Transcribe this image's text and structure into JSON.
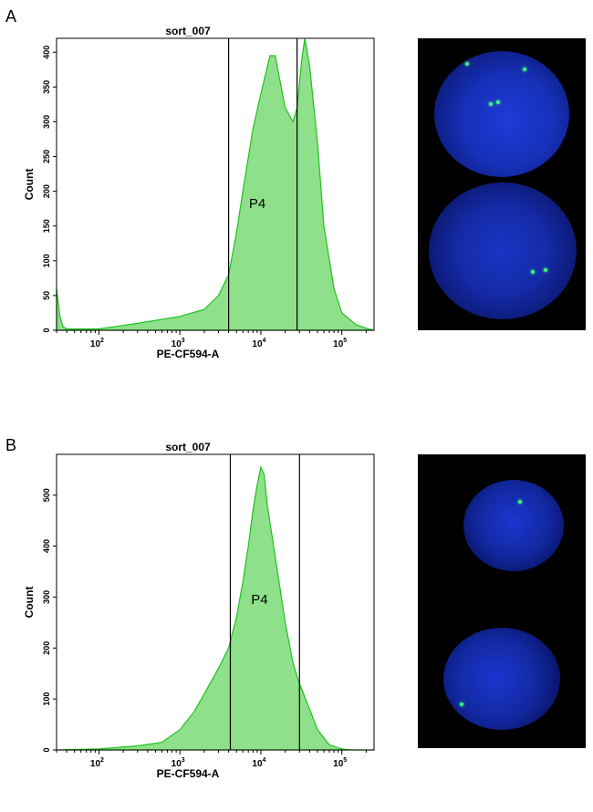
{
  "panels": [
    {
      "letter": "A",
      "micrograph": {
        "description_icon": "fluorescent-nuclei-image"
      }
    },
    {
      "letter": "B",
      "micrograph": {
        "description_icon": "fluorescent-nuclei-image"
      }
    }
  ],
  "chart_data": [
    {
      "type": "area",
      "title": "sort_007",
      "xlabel": "PE-CF594-A",
      "ylabel": "Count",
      "xscale": "log",
      "xlim": [
        30,
        250000
      ],
      "ylim": [
        0,
        420
      ],
      "xticks": [
        {
          "label": "10",
          "exp": "2"
        },
        {
          "label": "10",
          "exp": "3"
        },
        {
          "label": "10",
          "exp": "4"
        },
        {
          "label": "10",
          "exp": "5"
        }
      ],
      "xtick_values": [
        100,
        1000,
        10000,
        100000
      ],
      "yticks": [
        0,
        50,
        100,
        150,
        200,
        250,
        300,
        350,
        400
      ],
      "gate": {
        "label": "P4",
        "bounds": [
          4000,
          28000
        ]
      },
      "fill_color": "#8fe08a",
      "line_color": "#1fc21f",
      "series": [
        {
          "x": [
            30,
            33,
            36,
            40,
            100,
            300,
            1000,
            2000,
            3000,
            4000,
            5000,
            6000,
            8000,
            10000,
            13000,
            15000,
            20000,
            25000,
            28000,
            32000,
            35000,
            40000,
            50000,
            60000,
            80000,
            100000,
            150000,
            200000,
            250000
          ],
          "y": [
            60,
            20,
            5,
            2,
            2,
            10,
            20,
            30,
            50,
            80,
            140,
            200,
            290,
            340,
            395,
            395,
            320,
            300,
            320,
            390,
            420,
            380,
            270,
            150,
            60,
            25,
            8,
            3,
            0
          ]
        }
      ]
    },
    {
      "type": "area",
      "title": "sort_007",
      "xlabel": "PE-CF594-A",
      "ylabel": "Count",
      "xscale": "log",
      "xlim": [
        30,
        250000
      ],
      "ylim": [
        0,
        580
      ],
      "xticks": [
        {
          "label": "10",
          "exp": "2"
        },
        {
          "label": "10",
          "exp": "3"
        },
        {
          "label": "10",
          "exp": "4"
        },
        {
          "label": "10",
          "exp": "5"
        }
      ],
      "xtick_values": [
        100,
        1000,
        10000,
        100000
      ],
      "yticks": [
        0,
        100,
        200,
        300,
        400,
        500
      ],
      "gate": {
        "label": "P4",
        "bounds": [
          4200,
          30000
        ]
      },
      "fill_color": "#8fe08a",
      "line_color": "#1fc21f",
      "series": [
        {
          "x": [
            30,
            100,
            300,
            600,
            1000,
            1500,
            2000,
            3000,
            4000,
            5000,
            6000,
            7000,
            8000,
            9000,
            10000,
            11000,
            12000,
            15000,
            20000,
            25000,
            30000,
            40000,
            50000,
            70000,
            100000,
            130000,
            250000
          ],
          "y": [
            0,
            2,
            8,
            15,
            40,
            75,
            110,
            160,
            200,
            260,
            330,
            400,
            470,
            520,
            555,
            540,
            480,
            380,
            250,
            170,
            130,
            80,
            40,
            10,
            2,
            0,
            0
          ]
        }
      ]
    }
  ]
}
